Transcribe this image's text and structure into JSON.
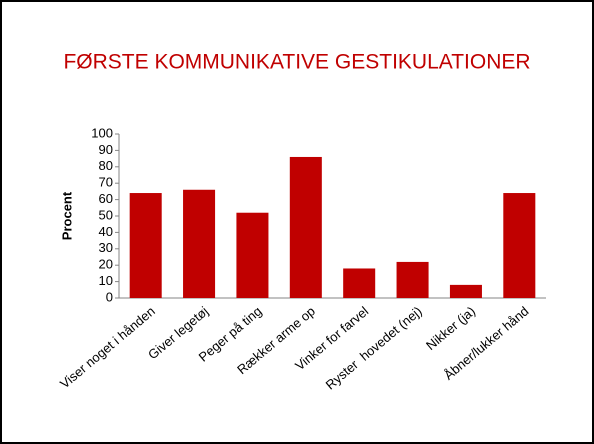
{
  "chart_data": {
    "type": "bar",
    "title": "FØRSTE KOMMUNIKATIVE GESTIKULATIONER",
    "y_label": "Procent",
    "categories": [
      "Viser noget i hånden",
      "Giver legetøj",
      "Peger på ting",
      "Rækker arme op",
      "Vinker for farvel",
      "Ryster  hovedet (nej)",
      "Nikker (ja)",
      "Åbner/lukker hånd"
    ],
    "values": [
      64,
      66,
      52,
      86,
      18,
      22,
      8,
      64
    ],
    "color": "#c00000",
    "ylim": [
      0,
      100
    ],
    "yticks": [
      0,
      10,
      20,
      30,
      40,
      50,
      60,
      70,
      80,
      90,
      100
    ],
    "grid": false
  }
}
